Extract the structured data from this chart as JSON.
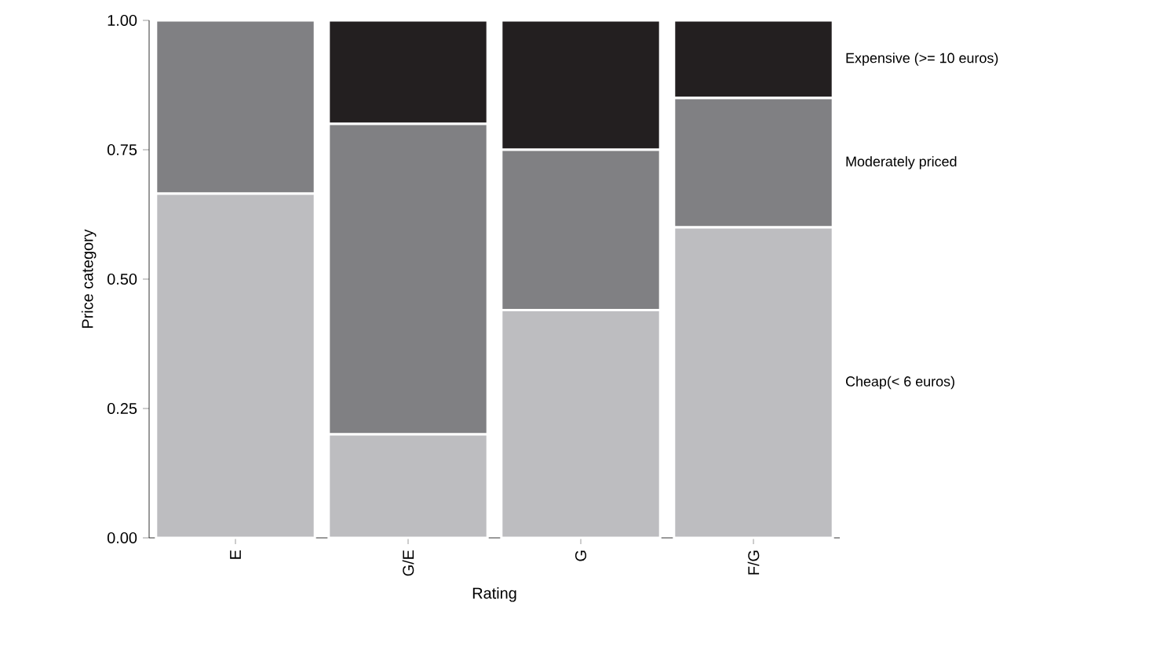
{
  "chart_data": {
    "type": "bar",
    "stacked": true,
    "xlabel": "Rating",
    "ylabel": "Price category",
    "categories": [
      "E",
      "G/E",
      "G",
      "F/G"
    ],
    "series": [
      {
        "name": "Cheap(< 6 euros)",
        "color": "#bdbdc0",
        "values": [
          0.665,
          0.2,
          0.44,
          0.6
        ]
      },
      {
        "name": "Moderately priced",
        "color": "#808083",
        "values": [
          0.335,
          0.6,
          0.31,
          0.25
        ]
      },
      {
        "name": "Expensive (>= 10 euros)",
        "color": "#231f20",
        "values": [
          0,
          0.2,
          0.25,
          0.15
        ]
      }
    ],
    "ylim": [
      0,
      1
    ],
    "yticks": [
      {
        "value": 0,
        "label": "0.00"
      },
      {
        "value": 0.25,
        "label": "0.25"
      },
      {
        "value": 0.5,
        "label": "0.50"
      },
      {
        "value": 0.75,
        "label": "0.75"
      },
      {
        "value": 1,
        "label": "1.00"
      }
    ],
    "legend": "right"
  }
}
